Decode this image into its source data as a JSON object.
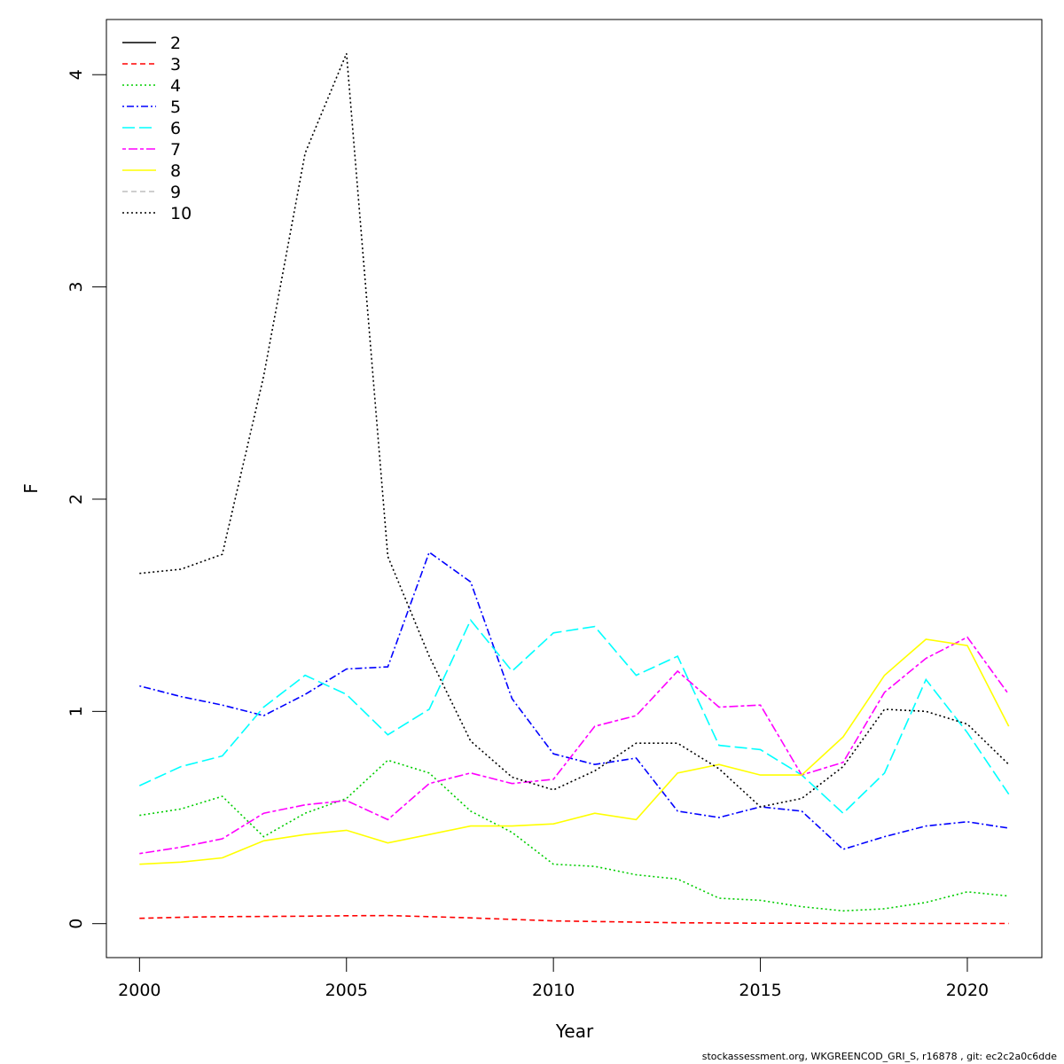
{
  "chart_data": {
    "type": "line",
    "title": "",
    "xlabel": "Year",
    "ylabel": "F",
    "xlim": [
      1999.2,
      2021.8
    ],
    "ylim": [
      -0.16,
      4.26
    ],
    "xticks": [
      2000,
      2005,
      2010,
      2015,
      2020
    ],
    "yticks": [
      0,
      1,
      2,
      3,
      4
    ],
    "legend_position": "top-left",
    "x": [
      2000,
      2001,
      2002,
      2003,
      2004,
      2005,
      2006,
      2007,
      2008,
      2009,
      2010,
      2011,
      2012,
      2013,
      2014,
      2015,
      2016,
      2017,
      2018,
      2019,
      2020,
      2021
    ],
    "series": [
      {
        "name": "2",
        "color": "#000000",
        "dash": "solid",
        "values": [
          null,
          null,
          null,
          null,
          null,
          null,
          null,
          null,
          null,
          null,
          null,
          null,
          null,
          null,
          null,
          null,
          null,
          null,
          null,
          null,
          null,
          null
        ]
      },
      {
        "name": "3",
        "color": "#ff0000",
        "dash": "dashed",
        "values": [
          0.025,
          0.03,
          0.033,
          0.034,
          0.035,
          0.037,
          0.038,
          0.033,
          0.027,
          0.02,
          0.013,
          0.01,
          0.007,
          0.004,
          0.003,
          0.002,
          0.002,
          0.001,
          0.001,
          0.001,
          0.001,
          0.001
        ]
      },
      {
        "name": "4",
        "color": "#00cd00",
        "dash": "dotted",
        "values": [
          0.51,
          0.54,
          0.6,
          0.41,
          0.52,
          0.59,
          0.77,
          0.71,
          0.53,
          0.43,
          0.28,
          0.27,
          0.23,
          0.21,
          0.12,
          0.11,
          0.08,
          0.06,
          0.07,
          0.1,
          0.15,
          0.13
        ]
      },
      {
        "name": "5",
        "color": "#0000ff",
        "dash": "dotdash",
        "values": [
          1.12,
          1.07,
          1.03,
          0.98,
          1.08,
          1.2,
          1.21,
          1.75,
          1.61,
          1.06,
          0.8,
          0.75,
          0.78,
          0.53,
          0.5,
          0.55,
          0.53,
          0.35,
          0.41,
          0.46,
          0.48,
          0.45
        ]
      },
      {
        "name": "6",
        "color": "#00ffff",
        "dash": "longdash",
        "values": [
          0.65,
          0.74,
          0.79,
          1.02,
          1.17,
          1.08,
          0.89,
          1.01,
          1.43,
          1.19,
          1.37,
          1.4,
          1.17,
          1.26,
          0.84,
          0.82,
          0.7,
          0.52,
          0.71,
          1.15,
          0.9,
          0.61
        ]
      },
      {
        "name": "7",
        "color": "#ff00ff",
        "dash": "twodash",
        "values": [
          0.33,
          0.36,
          0.4,
          0.52,
          0.56,
          0.58,
          0.49,
          0.66,
          0.71,
          0.66,
          0.68,
          0.93,
          0.98,
          1.19,
          1.02,
          1.03,
          0.7,
          0.76,
          1.09,
          1.25,
          1.35,
          1.08
        ]
      },
      {
        "name": "8",
        "color": "#ffff00",
        "dash": "solid",
        "values": [
          0.28,
          0.29,
          0.31,
          0.39,
          0.42,
          0.44,
          0.38,
          0.42,
          0.46,
          0.46,
          0.47,
          0.52,
          0.49,
          0.71,
          0.75,
          0.7,
          0.7,
          0.88,
          1.17,
          1.34,
          1.31,
          0.93
        ]
      },
      {
        "name": "9",
        "color": "#bebebe",
        "dash": "dashed",
        "values": [
          null,
          null,
          null,
          null,
          null,
          null,
          null,
          null,
          null,
          null,
          null,
          null,
          null,
          null,
          null,
          null,
          null,
          null,
          null,
          null,
          null,
          null
        ]
      },
      {
        "name": "10",
        "color": "#000000",
        "dash": "dotted",
        "values": [
          1.65,
          1.67,
          1.74,
          2.58,
          3.63,
          4.1,
          1.73,
          1.26,
          0.86,
          0.69,
          0.63,
          0.72,
          0.85,
          0.85,
          0.73,
          0.55,
          0.59,
          0.74,
          1.01,
          1.0,
          0.94,
          0.75
        ]
      }
    ]
  },
  "footer": "stockassessment.org, WKGREENCOD_GRI_S, r16878 , git: ec2c2a0c6dde"
}
